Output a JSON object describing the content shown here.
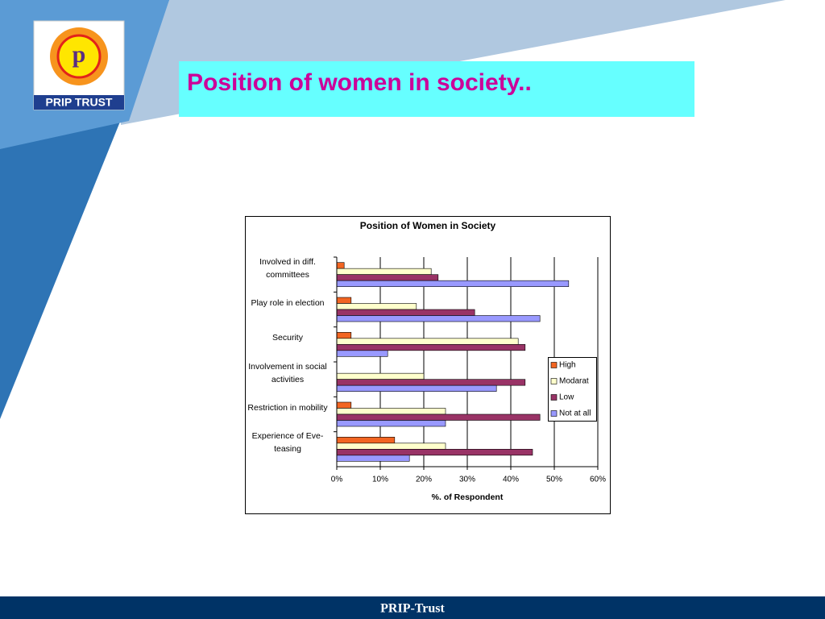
{
  "logo": {
    "text": "PRIP TRUST"
  },
  "title": "Position of women in society..",
  "footer": "PRIP-Trust",
  "chart_data": {
    "type": "hbar",
    "title": "Position of Women in Society",
    "x_label": "%. of Respondent",
    "categories": [
      "Involved in diff. committees",
      "Play role in election",
      "Security",
      "Involvement in social activities",
      "Restriction in mobility",
      "Experience of Eve-teasing"
    ],
    "series": [
      {
        "name": "High",
        "color": "#f26522",
        "values": [
          1.7,
          3.3,
          3.3,
          0,
          3.3,
          13.3
        ]
      },
      {
        "name": "Modarat",
        "color": "#ffffcc",
        "values": [
          21.7,
          18.3,
          41.7,
          20,
          25,
          25
        ]
      },
      {
        "name": "Low",
        "color": "#993366",
        "values": [
          23.3,
          31.7,
          43.3,
          43.3,
          46.7,
          45
        ]
      },
      {
        "name": "Not at all",
        "color": "#9999ff",
        "values": [
          53.3,
          46.7,
          11.7,
          36.7,
          25,
          16.7
        ]
      }
    ],
    "xlim": [
      0,
      60
    ],
    "xticks": [
      {
        "value": 0,
        "label": "0%"
      },
      {
        "value": 10,
        "label": "10%"
      },
      {
        "value": 20,
        "label": "20%"
      },
      {
        "value": 30,
        "label": "30%"
      },
      {
        "value": 40,
        "label": "40%"
      },
      {
        "value": 50,
        "label": "50%"
      },
      {
        "value": 60,
        "label": "60%"
      }
    ],
    "grid": true,
    "legend": "right"
  }
}
